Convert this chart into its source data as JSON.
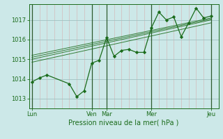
{
  "bg_color": "#cce8e8",
  "line_color": "#1a6b1a",
  "marker_color": "#1a6b1a",
  "ylim": [
    1012.5,
    1017.8
  ],
  "yticks": [
    1013,
    1014,
    1015,
    1016,
    1017
  ],
  "xlabel": "Pression niveau de la mer( hPa )",
  "xtick_labels": [
    "Lun",
    "Ven",
    "Mar",
    "Mer",
    "Jeu"
  ],
  "xtick_positions": [
    0,
    4,
    5,
    8,
    12
  ],
  "vline_positions": [
    0,
    4,
    5,
    8,
    12
  ],
  "xlim": [
    -0.2,
    12.5
  ],
  "series1_x": [
    0,
    0.5,
    1.0,
    2.5,
    3.0,
    3.5,
    4.0,
    4.5,
    5.0,
    5.5,
    6.0,
    6.5,
    7.0,
    7.5,
    8.0,
    8.5,
    9.0,
    9.5,
    10.0,
    10.5,
    11.0,
    11.5,
    12.0
  ],
  "series1_y": [
    1013.85,
    1014.05,
    1014.2,
    1013.75,
    1013.1,
    1013.4,
    1014.8,
    1014.95,
    1016.1,
    1015.15,
    1015.45,
    1015.5,
    1015.35,
    1015.35,
    1016.6,
    1017.4,
    1017.0,
    1017.15,
    1016.15,
    1016.85,
    1017.6,
    1017.1,
    1017.2
  ],
  "trend_lines": [
    [
      [
        0,
        12
      ],
      [
        1014.85,
        1016.85
      ]
    ],
    [
      [
        0,
        12
      ],
      [
        1015.0,
        1017.0
      ]
    ],
    [
      [
        0,
        12
      ],
      [
        1015.1,
        1017.05
      ]
    ],
    [
      [
        0,
        12
      ],
      [
        1015.2,
        1017.1
      ]
    ]
  ],
  "vgrid_step": 0.5,
  "pink_grid_color": "#d4b0b0",
  "hgrid_color": "#a0c0c0",
  "vline_color": "#2d5a2d",
  "ylabel_fontsize": 7,
  "ytick_fontsize": 6,
  "xtick_fontsize": 6
}
